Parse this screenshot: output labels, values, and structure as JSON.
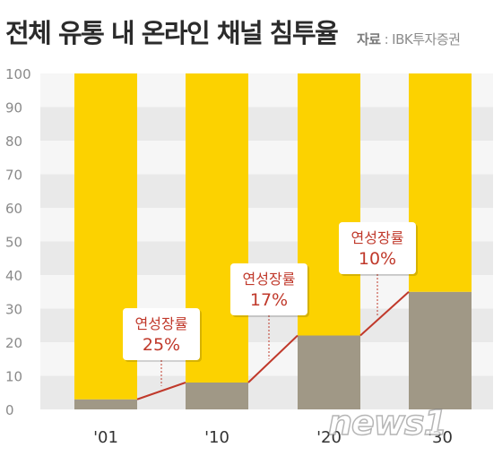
{
  "header": {
    "title": "전체 유통 내 온라인 채널 침투율",
    "source_label": "자료",
    "source_value": "IBK투자증권"
  },
  "watermark": "news1",
  "chart_data": {
    "type": "bar",
    "stacked": true,
    "categories": [
      "'01",
      "'10",
      "'20",
      "'30"
    ],
    "series": [
      {
        "values": [
          3,
          8,
          22,
          35
        ],
        "color": "#a09886"
      },
      {
        "values": [
          97,
          92,
          78,
          65
        ],
        "color": "#fcd200"
      }
    ],
    "trend_line": {
      "values": [
        3,
        8,
        22,
        35
      ],
      "color": "#c0392b"
    },
    "annotations": [
      {
        "label": "연성장률",
        "value": "25%",
        "between": [
          "'01",
          "'10"
        ]
      },
      {
        "label": "연성장률",
        "value": "17%",
        "between": [
          "'10",
          "'20"
        ]
      },
      {
        "label": "연성장률",
        "value": "10%",
        "between": [
          "'20",
          "'30"
        ]
      }
    ],
    "y_ticks": [
      "0",
      "10",
      "20",
      "30",
      "40",
      "50",
      "60",
      "70",
      "80",
      "90",
      "100"
    ],
    "ylim": [
      0,
      100
    ],
    "grid": "horizontal-bands",
    "band_colors": [
      "#e9e9e9",
      "#f6f6f6"
    ]
  }
}
